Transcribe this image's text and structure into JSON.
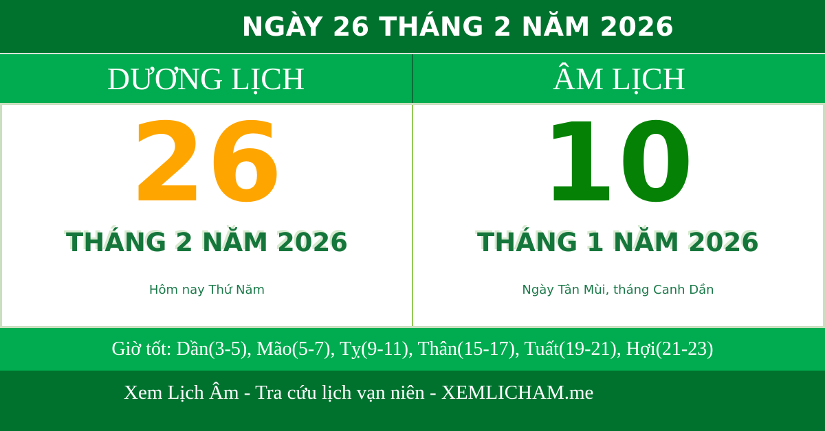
{
  "header": {
    "title": "NGÀY 26 THÁNG 2 NĂM 2026"
  },
  "solar": {
    "header": "DƯƠNG LỊCH",
    "day": "26",
    "month_year": "THÁNG 2 NĂM 2026",
    "note": "Hôm nay Thứ Năm"
  },
  "lunar": {
    "header": "ÂM LỊCH",
    "day": "10",
    "month_year": "THÁNG 1 NĂM 2026",
    "note": "Ngày Tân Mùi, tháng Canh Dần"
  },
  "good_hours": {
    "text": "Giờ tốt: Dần(3-5), Mão(5-7), Tỵ(9-11), Thân(15-17), Tuất(19-21), Hợi(21-23)"
  },
  "footer": {
    "text": "Xem Lịch Âm - Tra cứu lịch vạn niên - XEMLICHAM.me"
  },
  "colors": {
    "dark-green": "#00722E",
    "bright-green": "#00AC4F",
    "solar-day-orange": "#FFA500",
    "lunar-day-green": "#058205",
    "text-green": "#15763B",
    "note-green": "#1B7A4A",
    "pale-border": "#C9DFC0",
    "divider-green": "#93CA55",
    "header-divider": "#0A6D37",
    "white": "#FFFFFF"
  }
}
